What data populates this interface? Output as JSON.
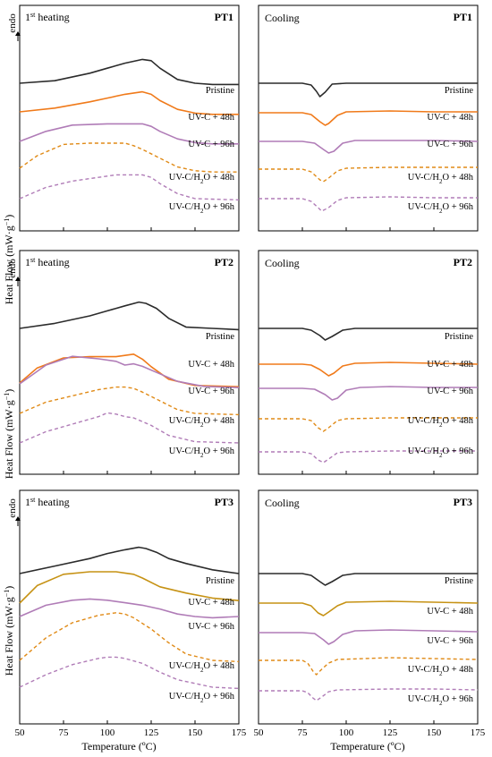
{
  "figure": {
    "ylabel_main": "Heat Flow (mW·g",
    "ylabel_exp": "−1",
    "ylabel_close": ")",
    "endo_label": "endo",
    "xlabel": "Temperature (ºC)",
    "xticks": [
      "50",
      "75",
      "100",
      "125",
      "150",
      "175"
    ],
    "xlim": [
      50,
      175
    ],
    "heating_title_prefix": "1",
    "heating_title_sup": "st",
    "heating_title_suffix": " heating",
    "cooling_title": "Cooling"
  },
  "legend_labels": {
    "pristine": "Pristine",
    "uvc48": "UV-C + 48h",
    "uvc96": "UV-C + 96h",
    "uvch2o48_a": "UV-C/H",
    "uvch2o48_sub": "2",
    "uvch2o48_b": "O + 48h",
    "uvch2o96_a": "UV-C/H",
    "uvch2o96_sub": "2",
    "uvch2o96_b": "O + 96h"
  },
  "colors": {
    "pristine": "#2b2b2b",
    "uvc48_pt1": "#f07a1a",
    "uvc48_pt2": "#f07a1a",
    "uvc48_pt3": "#c69214",
    "uvc96": "#b07cb7",
    "uvch2o48": "#e08a16",
    "uvch2o96": "#b07cb7"
  },
  "chart_data": [
    {
      "type": "line",
      "title": "PT1",
      "mode": "1st heating",
      "xlabel": "Temperature (ºC)",
      "ylabel": "Heat Flow (mW·g−1)",
      "xlim": [
        50,
        175
      ],
      "series": [
        {
          "name": "Pristine",
          "x": [
            50,
            70,
            90,
            100,
            110,
            120,
            125,
            130,
            140,
            150,
            160,
            175
          ],
          "y": [
            0,
            0.2,
            0.8,
            1.2,
            1.6,
            1.9,
            1.8,
            1.2,
            0.3,
            0,
            -0.1,
            -0.1
          ]
        },
        {
          "name": "UV-C + 48h",
          "x": [
            50,
            70,
            90,
            100,
            110,
            120,
            125,
            130,
            140,
            150,
            160,
            175
          ],
          "y": [
            0,
            0.3,
            0.8,
            1.1,
            1.4,
            1.6,
            1.4,
            0.9,
            0.2,
            -0.1,
            -0.2,
            -0.2
          ]
        },
        {
          "name": "UV-C + 96h",
          "x": [
            50,
            65,
            80,
            100,
            110,
            120,
            125,
            130,
            140,
            150,
            160,
            175
          ],
          "y": [
            0,
            0.8,
            1.3,
            1.4,
            1.4,
            1.4,
            1.2,
            0.8,
            0.2,
            -0.1,
            -0.2,
            -0.2
          ]
        },
        {
          "name": "UV-C/H2O + 48h",
          "x": [
            50,
            60,
            75,
            90,
            110,
            115,
            120,
            130,
            140,
            150,
            160,
            175
          ],
          "y": [
            0,
            1.0,
            1.9,
            2.0,
            2.0,
            1.8,
            1.5,
            0.8,
            0.1,
            -0.2,
            -0.3,
            -0.3
          ]
        },
        {
          "name": "UV-C/H2O + 96h",
          "x": [
            50,
            65,
            80,
            95,
            105,
            110,
            120,
            125,
            130,
            140,
            150,
            175
          ],
          "y": [
            0,
            0.9,
            1.4,
            1.7,
            1.9,
            1.9,
            1.9,
            1.7,
            1.2,
            0.4,
            0,
            -0.1
          ]
        }
      ]
    },
    {
      "type": "line",
      "title": "PT1",
      "mode": "Cooling",
      "xlabel": "Temperature (ºC)",
      "xlim": [
        50,
        175
      ],
      "series": [
        {
          "name": "Pristine",
          "x": [
            50,
            75,
            80,
            83,
            85,
            88,
            92,
            100,
            125,
            150,
            175
          ],
          "y": [
            0,
            0,
            -0.2,
            -0.9,
            -1.5,
            -1.0,
            -0.1,
            0,
            0,
            0,
            0
          ]
        },
        {
          "name": "UV-C + 48h",
          "x": [
            50,
            75,
            80,
            85,
            88,
            90,
            95,
            100,
            125,
            150,
            175
          ],
          "y": [
            0,
            0,
            -0.2,
            -1.0,
            -1.4,
            -1.2,
            -0.3,
            0.1,
            0.2,
            0.1,
            0.1
          ]
        },
        {
          "name": "UV-C + 96h",
          "x": [
            50,
            75,
            82,
            87,
            90,
            93,
            98,
            105,
            125,
            150,
            175
          ],
          "y": [
            0,
            0,
            -0.2,
            -0.9,
            -1.3,
            -1.1,
            -0.2,
            0.1,
            0.1,
            0.1,
            0
          ]
        },
        {
          "name": "UV-C/H2O + 48h",
          "x": [
            50,
            75,
            80,
            85,
            87,
            90,
            95,
            100,
            125,
            150,
            175
          ],
          "y": [
            0,
            0,
            -0.3,
            -1.2,
            -1.4,
            -1.0,
            -0.2,
            0.1,
            0.2,
            0.2,
            0.2
          ]
        },
        {
          "name": "UV-C/H2O + 96h",
          "x": [
            50,
            75,
            80,
            84,
            86,
            90,
            95,
            100,
            125,
            150,
            175
          ],
          "y": [
            0,
            0,
            -0.3,
            -1.0,
            -1.4,
            -1.0,
            -0.2,
            0.1,
            0.2,
            0.1,
            0.1
          ]
        }
      ]
    },
    {
      "type": "line",
      "title": "PT2",
      "mode": "1st heating",
      "xlabel": "Temperature (ºC)",
      "ylabel": "Heat Flow (mW·g−1)",
      "xlim": [
        50,
        175
      ],
      "series": [
        {
          "name": "Pristine",
          "x": [
            50,
            70,
            90,
            100,
            110,
            118,
            122,
            128,
            135,
            145,
            160,
            175
          ],
          "y": [
            0,
            0.4,
            1.0,
            1.4,
            1.8,
            2.1,
            2.0,
            1.6,
            0.8,
            0.1,
            0,
            -0.1
          ]
        },
        {
          "name": "UV-C + 48h",
          "x": [
            50,
            60,
            75,
            90,
            105,
            110,
            115,
            120,
            125,
            135,
            150,
            175
          ],
          "y": [
            0,
            1.2,
            2.0,
            2.1,
            2.1,
            2.2,
            2.3,
            1.9,
            1.3,
            0.3,
            -0.2,
            -0.3
          ]
        },
        {
          "name": "UV-C + 96h",
          "x": [
            50,
            65,
            80,
            95,
            105,
            110,
            115,
            120,
            130,
            140,
            155,
            175
          ],
          "y": [
            0,
            1.5,
            2.2,
            2.0,
            1.8,
            1.5,
            1.6,
            1.4,
            0.8,
            0.2,
            -0.2,
            -0.3
          ]
        },
        {
          "name": "UV-C/H2O + 48h",
          "x": [
            50,
            65,
            80,
            95,
            105,
            110,
            115,
            120,
            130,
            140,
            150,
            175
          ],
          "y": [
            0,
            0.9,
            1.4,
            1.9,
            2.1,
            2.1,
            2.0,
            1.7,
            1.0,
            0.3,
            0,
            -0.1
          ]
        },
        {
          "name": "UV-C/H2O + 96h",
          "x": [
            50,
            65,
            80,
            95,
            100,
            105,
            110,
            115,
            125,
            135,
            150,
            175
          ],
          "y": [
            0,
            0.9,
            1.5,
            2.1,
            2.4,
            2.3,
            2.1,
            2.0,
            1.4,
            0.6,
            0.1,
            0
          ]
        }
      ]
    },
    {
      "type": "line",
      "title": "PT2",
      "mode": "Cooling",
      "xlabel": "Temperature (ºC)",
      "xlim": [
        50,
        175
      ],
      "series": [
        {
          "name": "Pristine",
          "x": [
            50,
            75,
            80,
            85,
            88,
            92,
            98,
            105,
            125,
            150,
            175
          ],
          "y": [
            0,
            0,
            -0.2,
            -0.8,
            -1.3,
            -0.9,
            -0.2,
            0,
            0,
            0,
            0
          ]
        },
        {
          "name": "UV-C + 48h",
          "x": [
            50,
            75,
            80,
            85,
            90,
            93,
            98,
            105,
            125,
            150,
            175
          ],
          "y": [
            0,
            0,
            -0.1,
            -0.6,
            -1.3,
            -1.0,
            -0.2,
            0.1,
            0.2,
            0.1,
            0
          ]
        },
        {
          "name": "UV-C + 96h",
          "x": [
            50,
            75,
            82,
            88,
            92,
            95,
            100,
            108,
            125,
            150,
            175
          ],
          "y": [
            0,
            0,
            -0.1,
            -0.7,
            -1.3,
            -1.1,
            -0.2,
            0.1,
            0.2,
            0.1,
            0.1
          ]
        },
        {
          "name": "UV-C/H2O + 48h",
          "x": [
            50,
            75,
            80,
            84,
            87,
            90,
            95,
            100,
            125,
            150,
            175
          ],
          "y": [
            0,
            0,
            -0.2,
            -1.0,
            -1.4,
            -1.0,
            -0.2,
            0,
            0.1,
            0.1,
            0.1
          ]
        },
        {
          "name": "UV-C/H2O + 96h",
          "x": [
            50,
            75,
            80,
            84,
            87,
            90,
            95,
            100,
            125,
            150,
            175
          ],
          "y": [
            0,
            0,
            -0.2,
            -0.9,
            -1.2,
            -0.8,
            -0.1,
            0,
            0.1,
            0.1,
            0.1
          ]
        }
      ]
    },
    {
      "type": "line",
      "title": "PT3",
      "mode": "1st heating",
      "xlabel": "Temperature (ºC)",
      "ylabel": "Heat Flow (mW·g−1)",
      "xlim": [
        50,
        175
      ],
      "series": [
        {
          "name": "Pristine",
          "x": [
            50,
            70,
            90,
            100,
            110,
            118,
            122,
            128,
            135,
            145,
            160,
            175
          ],
          "y": [
            0,
            0.6,
            1.2,
            1.6,
            1.9,
            2.1,
            2.0,
            1.7,
            1.2,
            0.8,
            0.3,
            0
          ]
        },
        {
          "name": "UV-C + 48h",
          "x": [
            50,
            60,
            75,
            90,
            105,
            110,
            115,
            120,
            130,
            145,
            160,
            175
          ],
          "y": [
            0,
            1.4,
            2.3,
            2.5,
            2.5,
            2.4,
            2.3,
            2.0,
            1.3,
            0.8,
            0.4,
            0.2
          ]
        },
        {
          "name": "UV-C + 96h",
          "x": [
            50,
            65,
            80,
            90,
            100,
            110,
            120,
            130,
            140,
            150,
            160,
            175
          ],
          "y": [
            0,
            0.9,
            1.3,
            1.4,
            1.3,
            1.1,
            0.9,
            0.6,
            0.2,
            0,
            -0.1,
            0
          ]
        },
        {
          "name": "UV-C/H2O + 48h",
          "x": [
            50,
            65,
            80,
            95,
            105,
            110,
            115,
            125,
            135,
            145,
            160,
            175
          ],
          "y": [
            0,
            1.8,
            3.0,
            3.6,
            3.8,
            3.7,
            3.4,
            2.5,
            1.4,
            0.5,
            0,
            -0.1
          ]
        },
        {
          "name": "UV-C/H2O + 96h",
          "x": [
            50,
            65,
            80,
            95,
            100,
            105,
            110,
            120,
            130,
            140,
            160,
            175
          ],
          "y": [
            0,
            1.0,
            1.8,
            2.3,
            2.4,
            2.4,
            2.3,
            1.9,
            1.2,
            0.6,
            0,
            -0.1
          ]
        }
      ]
    },
    {
      "type": "line",
      "title": "PT3",
      "mode": "Cooling",
      "xlabel": "Temperature (ºC)",
      "xlim": [
        50,
        175
      ],
      "series": [
        {
          "name": "Pristine",
          "x": [
            50,
            75,
            80,
            85,
            88,
            92,
            98,
            105,
            125,
            150,
            175
          ],
          "y": [
            0,
            0,
            -0.2,
            -0.9,
            -1.3,
            -0.9,
            -0.2,
            0,
            0,
            0,
            0
          ]
        },
        {
          "name": "UV-C + 48h",
          "x": [
            50,
            75,
            80,
            84,
            87,
            90,
            95,
            100,
            125,
            150,
            175
          ],
          "y": [
            0,
            0,
            -0.3,
            -1.1,
            -1.4,
            -1.0,
            -0.3,
            0.1,
            0.2,
            0.1,
            0
          ]
        },
        {
          "name": "UV-C + 96h",
          "x": [
            50,
            75,
            82,
            87,
            90,
            93,
            98,
            105,
            125,
            150,
            175
          ],
          "y": [
            0,
            0,
            -0.1,
            -0.8,
            -1.3,
            -1.0,
            -0.2,
            0.2,
            0.3,
            0.2,
            0.1
          ]
        },
        {
          "name": "UV-C/H2O + 48h",
          "x": [
            50,
            75,
            78,
            81,
            83,
            86,
            90,
            95,
            125,
            150,
            175
          ],
          "y": [
            0,
            0,
            -0.3,
            -1.2,
            -1.6,
            -1.0,
            -0.3,
            0.1,
            0.3,
            0.2,
            0.1
          ]
        },
        {
          "name": "UV-C/H2O + 96h",
          "x": [
            50,
            75,
            78,
            81,
            83,
            86,
            90,
            95,
            125,
            150,
            175
          ],
          "y": [
            0,
            0,
            -0.2,
            -0.8,
            -1.1,
            -0.7,
            -0.1,
            0.1,
            0.2,
            0.2,
            0.1
          ]
        }
      ]
    }
  ]
}
